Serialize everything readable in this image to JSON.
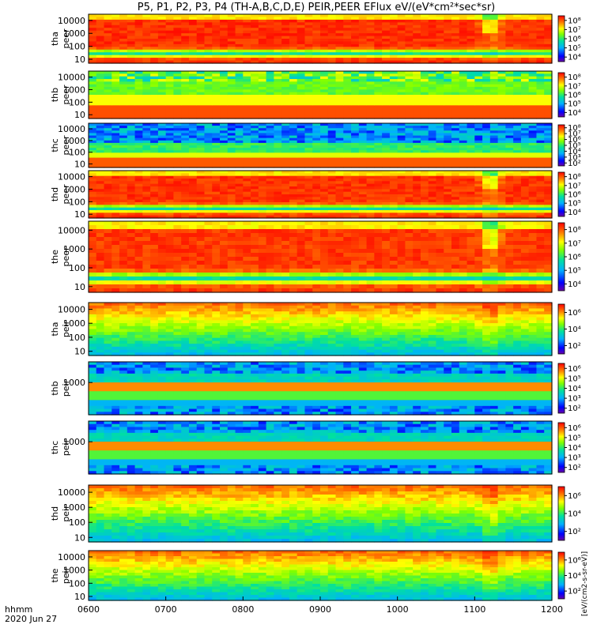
{
  "chart_data": {
    "type": "heatmap",
    "title": "P5, P1, P2, P3, P4 (TH-A,B,C,D,E) PEIR,PEER EFlux eV/(eV*cm²*sec*sr)",
    "date_label": "2020 Jun 27",
    "time_unit_label": "hhmm",
    "x_tick_labels": [
      "0600",
      "0700",
      "0800",
      "0900",
      "1000",
      "1100",
      "1200"
    ],
    "x_range": [
      "06:00",
      "12:00"
    ],
    "colorbar_label": "[eV/(cm2-s-sr-eV)]",
    "panels": [
      {
        "probe": "tha",
        "species": "peer",
        "ylim": [
          5,
          30000
        ],
        "yticks": [
          "10",
          "100",
          "1000",
          "10000"
        ],
        "cbar_ticks": [
          "10⁴",
          "10⁵",
          "10⁶",
          "10⁷",
          "10⁸"
        ],
        "pattern": "electron_dense",
        "flux_level": 0.88
      },
      {
        "probe": "thb",
        "species": "peer",
        "ylim": [
          5,
          30000
        ],
        "yticks": [
          "10",
          "100",
          "1000",
          "10000"
        ],
        "cbar_ticks": [
          "10⁴",
          "10⁵",
          "10⁶",
          "10⁷",
          "10⁸"
        ],
        "pattern": "electron_banded",
        "flux_level": 0.7
      },
      {
        "probe": "thc",
        "species": "peer",
        "ylim": [
          5,
          30000
        ],
        "yticks": [
          "10",
          "100",
          "1000",
          "10000"
        ],
        "cbar_ticks": [
          "10²",
          "10³",
          "10⁴",
          "10⁵",
          "10⁶",
          "10⁷",
          "10⁸"
        ],
        "pattern": "electron_low",
        "flux_level": 0.55
      },
      {
        "probe": "thd",
        "species": "peer",
        "ylim": [
          5,
          30000
        ],
        "yticks": [
          "10",
          "100",
          "1000",
          "10000"
        ],
        "cbar_ticks": [
          "10⁴",
          "10⁵",
          "10⁶",
          "10⁷",
          "10⁸"
        ],
        "pattern": "electron_dense",
        "flux_level": 0.85
      },
      {
        "probe": "the",
        "species": "peer",
        "ylim": [
          5,
          30000
        ],
        "yticks": [
          "10",
          "100",
          "1000",
          "10000"
        ],
        "cbar_ticks": [
          "10⁴",
          "10⁵",
          "10⁶",
          "10⁷",
          "10⁸"
        ],
        "pattern": "electron_dense",
        "flux_level": 0.82
      },
      {
        "probe": "tha",
        "species": "peir",
        "ylim": [
          5,
          30000
        ],
        "yticks": [
          "10",
          "100",
          "1000",
          "10000"
        ],
        "cbar_ticks": [
          "10²",
          "10⁴",
          "10⁶"
        ],
        "pattern": "ion",
        "flux_level": 0.6
      },
      {
        "probe": "thb",
        "species": "peir",
        "ylim": [
          5,
          30000
        ],
        "yticks": [
          "1000"
        ],
        "cbar_ticks": [
          "10²",
          "10³",
          "10⁴",
          "10⁵",
          "10⁶"
        ],
        "pattern": "ion_banded",
        "flux_level": 0.5
      },
      {
        "probe": "thc",
        "species": "peir",
        "ylim": [
          5,
          30000
        ],
        "yticks": [
          "1000"
        ],
        "cbar_ticks": [
          "10²",
          "10³",
          "10⁴",
          "10⁵",
          "10⁶"
        ],
        "pattern": "ion_banded",
        "flux_level": 0.5
      },
      {
        "probe": "thd",
        "species": "peir",
        "ylim": [
          5,
          30000
        ],
        "yticks": [
          "10",
          "100",
          "1000",
          "10000"
        ],
        "cbar_ticks": [
          "10²",
          "10⁴",
          "10⁶"
        ],
        "pattern": "ion",
        "flux_level": 0.6
      },
      {
        "probe": "the",
        "species": "peir",
        "ylim": [
          5,
          30000
        ],
        "yticks": [
          "10",
          "100",
          "1000",
          "10000"
        ],
        "cbar_ticks": [
          "10²",
          "10⁴",
          "10⁶"
        ],
        "pattern": "ion",
        "flux_level": 0.6
      }
    ]
  }
}
